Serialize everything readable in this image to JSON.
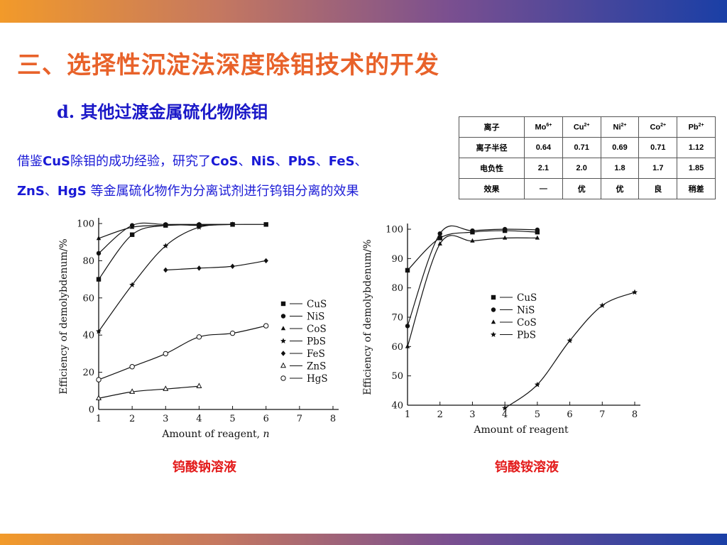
{
  "slide": {
    "title": "三、选择性沉淀法深度除钼技术的开发",
    "subtitle_prefix": "d.",
    "subtitle": "其他过渡金属硫化物除钼",
    "intro_line1": {
      "p1": "借鉴",
      "b1": "CuS",
      "p2": "除钼的成功经验，研究了",
      "b2": "CoS",
      "p3": "、",
      "b3": "NiS",
      "p4": "、",
      "b4": "PbS",
      "p5": "、",
      "b5": "FeS",
      "p6": "、"
    },
    "intro_line2": {
      "b1": "ZnS",
      "p1": "、",
      "b2": "HgS",
      "p2": " 等金属硫化物作为分离试剂进行钨钼分离的效果"
    }
  },
  "table": {
    "header": [
      {
        "base": "离子",
        "sup": ""
      },
      {
        "base": "Mo",
        "sup": "6+"
      },
      {
        "base": "Cu",
        "sup": "2+"
      },
      {
        "base": "Ni",
        "sup": "2+"
      },
      {
        "base": "Co",
        "sup": "2+"
      },
      {
        "base": "Pb",
        "sup": "2+"
      }
    ],
    "rows": [
      [
        "离子半径",
        "0.64",
        "0.71",
        "0.69",
        "0.71",
        "1.12"
      ],
      [
        "电负性",
        "2.1",
        "2.0",
        "1.8",
        "1.7",
        "1.85"
      ],
      [
        "效果",
        "—",
        "优",
        "优",
        "良",
        "稍差"
      ]
    ]
  },
  "chart_data": [
    {
      "type": "line",
      "caption": "钨酸钠溶液",
      "xlabel": "Amount of reagent, n",
      "ylabel": "Efficiency of demolybdenum/%",
      "xlim": [
        1,
        8
      ],
      "ylim": [
        0,
        100
      ],
      "xticks": [
        1,
        2,
        3,
        4,
        5,
        6,
        7,
        8
      ],
      "yticks": [
        0,
        20,
        40,
        60,
        80,
        100
      ],
      "grid": false,
      "legend_position": "right",
      "series": [
        {
          "name": "CuS",
          "marker": "square",
          "x": [
            1,
            2,
            3,
            4,
            5,
            6
          ],
          "y": [
            70,
            94,
            99,
            99,
            99.5,
            99.5
          ]
        },
        {
          "name": "NiS",
          "marker": "circle",
          "x": [
            1,
            2,
            3,
            4,
            5
          ],
          "y": [
            84,
            99,
            99.5,
            99.5,
            99.5
          ]
        },
        {
          "name": "CoS",
          "marker": "triangle",
          "x": [
            1,
            2,
            3,
            4,
            5
          ],
          "y": [
            92,
            98,
            99,
            99.5,
            99.5
          ]
        },
        {
          "name": "PbS",
          "marker": "star",
          "x": [
            1,
            2,
            3,
            4,
            5
          ],
          "y": [
            42,
            67,
            88,
            98,
            99.5
          ]
        },
        {
          "name": "FeS",
          "marker": "diamond",
          "x": [
            3,
            4,
            5,
            6
          ],
          "y": [
            75,
            76,
            77,
            80
          ]
        },
        {
          "name": "ZnS",
          "marker": "triangle-open",
          "x": [
            1,
            2,
            3,
            4
          ],
          "y": [
            6,
            9.5,
            11,
            12.5
          ]
        },
        {
          "name": "HgS",
          "marker": "circle-open",
          "x": [
            1,
            2,
            3,
            4,
            5,
            6
          ],
          "y": [
            16,
            23,
            30,
            39,
            41,
            45
          ]
        }
      ]
    },
    {
      "type": "line",
      "caption": "钨酸铵溶液",
      "xlabel": "Amount of reagent",
      "ylabel": "Efficiency of demolybdenum/%",
      "xlim": [
        1,
        8
      ],
      "ylim": [
        40,
        100
      ],
      "xticks": [
        1,
        2,
        3,
        4,
        5,
        6,
        7,
        8
      ],
      "yticks": [
        40,
        50,
        60,
        70,
        80,
        90,
        100
      ],
      "grid": false,
      "legend_position": "center",
      "series": [
        {
          "name": "CuS",
          "marker": "square",
          "x": [
            1,
            2,
            3,
            4,
            5
          ],
          "y": [
            86,
            97,
            99,
            99.5,
            99
          ]
        },
        {
          "name": "NiS",
          "marker": "circle",
          "x": [
            1,
            2,
            3,
            4,
            5
          ],
          "y": [
            67,
            98.5,
            99.5,
            100,
            99.8
          ]
        },
        {
          "name": "CoS",
          "marker": "triangle",
          "x": [
            1,
            2,
            3,
            4,
            5
          ],
          "y": [
            60,
            95,
            96,
            97,
            97
          ]
        },
        {
          "name": "PbS",
          "marker": "star",
          "x": [
            4,
            5,
            6,
            7,
            8
          ],
          "y": [
            39,
            47,
            62,
            74,
            78.5
          ]
        }
      ]
    }
  ]
}
